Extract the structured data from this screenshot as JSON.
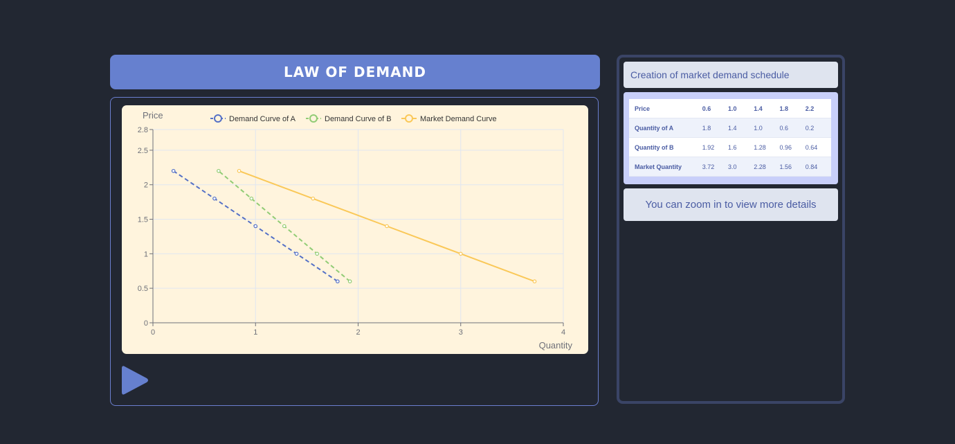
{
  "header": {
    "title": "LAW OF DEMAND"
  },
  "chart_data": {
    "type": "line",
    "xlabel": "Quantity",
    "ylabel": "Price",
    "xlim": [
      0,
      4
    ],
    "ylim": [
      0,
      2.8
    ],
    "x_ticks": [
      "0",
      "1",
      "2",
      "3",
      "4"
    ],
    "y_ticks": [
      "0",
      "0.5",
      "1",
      "1.5",
      "2",
      "2.5",
      "2.8"
    ],
    "grid": true,
    "legend": "top-center",
    "series": [
      {
        "name": "Demand Curve of A",
        "color": "#5470c6",
        "dashed": true,
        "points": [
          [
            1.8,
            0.6
          ],
          [
            1.4,
            1.0
          ],
          [
            1.0,
            1.4
          ],
          [
            0.6,
            1.8
          ],
          [
            0.2,
            2.2
          ]
        ]
      },
      {
        "name": "Demand Curve of B",
        "color": "#91cc75",
        "dashed": true,
        "points": [
          [
            1.92,
            0.6
          ],
          [
            1.6,
            1.0
          ],
          [
            1.28,
            1.4
          ],
          [
            0.96,
            1.8
          ],
          [
            0.64,
            2.2
          ]
        ]
      },
      {
        "name": "Market Demand Curve",
        "color": "#fac858",
        "dashed": false,
        "points": [
          [
            3.72,
            0.6
          ],
          [
            3.0,
            1.0
          ],
          [
            2.28,
            1.4
          ],
          [
            1.56,
            1.8
          ],
          [
            0.84,
            2.2
          ]
        ]
      }
    ]
  },
  "controls": {
    "play_icon": "play-icon"
  },
  "side": {
    "header": "Creation of market demand schedule",
    "table": [
      {
        "label": "Price",
        "values": [
          "0.6",
          "1.0",
          "1.4",
          "1.8",
          "2.2"
        ]
      },
      {
        "label": "Quantity of A",
        "values": [
          "1.8",
          "1.4",
          "1.0",
          "0.6",
          "0.2"
        ]
      },
      {
        "label": "Quantity of B",
        "values": [
          "1.92",
          "1.6",
          "1.28",
          "0.96",
          "0.64"
        ]
      },
      {
        "label": "Market Quantity",
        "values": [
          "3.72",
          "3.0",
          "2.28",
          "1.56",
          "0.84"
        ]
      }
    ],
    "note": "You can zoom in to view more details"
  }
}
